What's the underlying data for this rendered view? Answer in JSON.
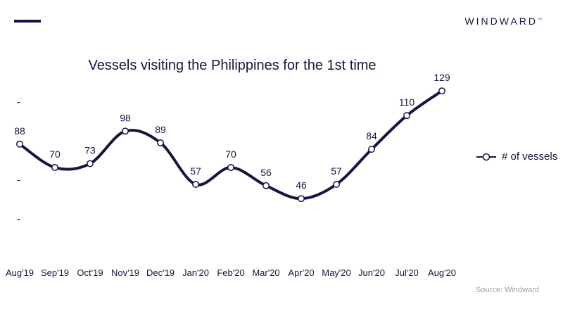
{
  "header": {
    "brand": "WINDWARD",
    "brand_mark": "™"
  },
  "legend": {
    "label": "# of vessels"
  },
  "source": "Source: Windward",
  "colors": {
    "line": "#14163f",
    "marker_fill": "#ffffff",
    "text": "#14163f",
    "source": "#9a9ea8"
  },
  "chart_data": {
    "type": "line",
    "title": "Vessels visiting the Philippines for the 1st time",
    "xlabel": "",
    "ylabel": "",
    "categories": [
      "Aug'19",
      "Sep'19",
      "Oct'19",
      "Nov'19",
      "Dec'19",
      "Jan'20",
      "Feb'20",
      "Mar'20",
      "Apr'20",
      "May'20",
      "Jun'20",
      "Jul'20",
      "Aug'20"
    ],
    "series": [
      {
        "name": "# of vessels",
        "values": [
          88,
          70,
          73,
          98,
          89,
          57,
          70,
          56,
          46,
          57,
          84,
          110,
          129
        ]
      }
    ],
    "ylim": [
      0,
      160
    ],
    "yticks": [
      30,
      60,
      90,
      120
    ],
    "grid": false,
    "legend_position": "right",
    "smooth": true
  }
}
